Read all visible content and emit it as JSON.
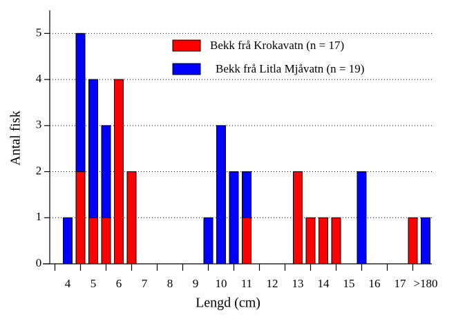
{
  "chart_data": {
    "type": "bar",
    "stacked": true,
    "x_label": "Lengd (cm)",
    "y_label": "Antal fisk",
    "categories": [
      "4",
      null,
      "5",
      null,
      "6",
      null,
      "7",
      null,
      "8",
      null,
      "9",
      null,
      "10",
      null,
      "11",
      null,
      "12",
      null,
      "13",
      null,
      "14",
      null,
      "15",
      null,
      "16",
      null,
      "17",
      null,
      ">180"
    ],
    "series": [
      {
        "name": "Bekk frå Krokavatn (n = 17)",
        "color": "#ff0000",
        "values": [
          0,
          2,
          1,
          1,
          4,
          2,
          0,
          0,
          0,
          0,
          0,
          0,
          0,
          0,
          1,
          0,
          0,
          0,
          2,
          1,
          1,
          1,
          0,
          0,
          0,
          0,
          0,
          1,
          0
        ]
      },
      {
        "name": "Bekk frå Litla Mjåvatn (n = 19)",
        "color": "#0000ff",
        "values": [
          1,
          3,
          3,
          2,
          0,
          0,
          0,
          0,
          0,
          0,
          0,
          1,
          3,
          2,
          1,
          0,
          0,
          0,
          0,
          0,
          0,
          0,
          0,
          2,
          0,
          0,
          0,
          0,
          1
        ]
      }
    ],
    "ylim": [
      0,
      5.5
    ],
    "yticks": [
      0,
      1,
      2,
      3,
      4,
      5
    ],
    "grid": true,
    "legend": "top"
  }
}
